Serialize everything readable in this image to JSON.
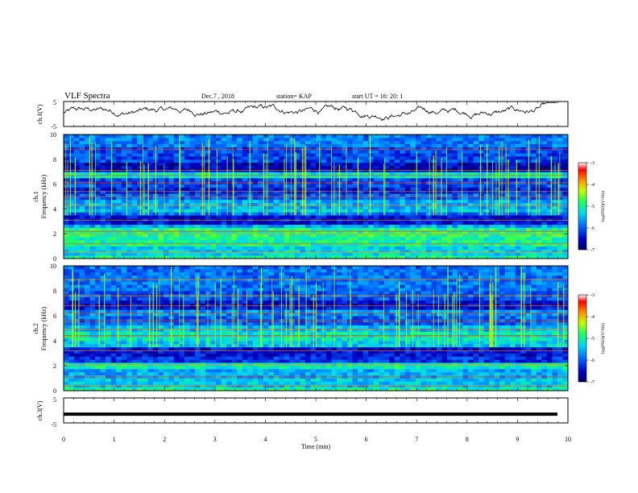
{
  "header": {
    "title": "VLF Spectra",
    "date": "Dec.7 , 2018",
    "station": "station= KAP",
    "start": "start UT =  16: 20: 1"
  },
  "chart_data": [
    {
      "type": "line",
      "ylabel": "ch.1(V)",
      "ylim": [
        -5,
        5
      ],
      "y_ticks": [
        "5",
        "-5"
      ],
      "xlim": [
        0,
        10
      ],
      "description_values": "noisy waveform fluctuating roughly between -2 and 4 V, rising toward +4 V at end"
    },
    {
      "type": "heatmap",
      "ylabel": "ch.1\nFrequency (kHz)",
      "ylabel_line1": "ch.1",
      "ylabel_line2": "Frequency (kHz)",
      "ylim": [
        0,
        10
      ],
      "y_ticks": [
        "0",
        "2",
        "4",
        "6",
        "8",
        "10"
      ],
      "xlim": [
        0,
        10
      ],
      "colorbar": {
        "label": "log(PSD)(V²/Hz)",
        "range": [
          -7,
          -3
        ],
        "ticks": [
          "-3",
          "-4",
          "-5",
          "-6",
          "-7"
        ]
      }
    },
    {
      "type": "heatmap",
      "ylabel": "ch.2\nFrequency (kHz)",
      "ylabel_line1": "ch.2",
      "ylabel_line2": "Frequency (kHz)",
      "ylim": [
        0,
        10
      ],
      "y_ticks": [
        "0",
        "2",
        "4",
        "6",
        "8",
        "10"
      ],
      "xlim": [
        0,
        10
      ],
      "colorbar": {
        "label": "log(PSD)(V²/Hz)",
        "range": [
          -7,
          -3
        ],
        "ticks": [
          "-3",
          "-4",
          "-5",
          "-6",
          "-7"
        ]
      }
    },
    {
      "type": "line",
      "ylabel": "ch.3(V)",
      "ylim": [
        -5,
        5
      ],
      "y_ticks": [
        "5",
        "-5"
      ],
      "xlim": [
        0,
        10
      ],
      "series": [
        {
          "values": [
            -1.5,
            -1.5
          ]
        }
      ],
      "xlabel": "Time  (min)",
      "x_ticks": [
        "0",
        "1",
        "2",
        "3",
        "4",
        "5",
        "6",
        "7",
        "8",
        "9",
        "10"
      ]
    }
  ]
}
